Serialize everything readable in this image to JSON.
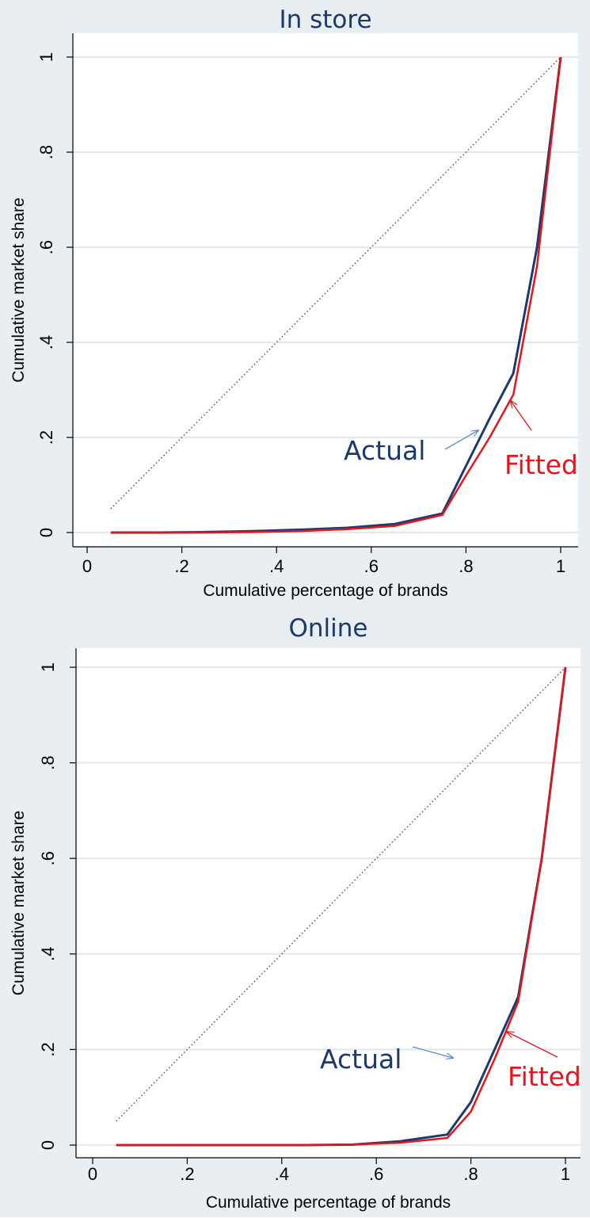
{
  "chart_data": [
    {
      "type": "line",
      "title": "In store",
      "xlabel": "Cumulative percentage of brands",
      "ylabel": "Cumulative market share",
      "xlim": [
        0,
        1
      ],
      "ylim": [
        0,
        1
      ],
      "x_ticks": [
        "0",
        ".2",
        ".4",
        ".6",
        ".8",
        "1"
      ],
      "y_ticks": [
        "0",
        ".2",
        ".4",
        ".6",
        ".8",
        "1"
      ],
      "grid": true,
      "colors": {
        "actual": "#1a3a6e",
        "fitted": "#e8141b",
        "diagonal": "#555555",
        "arrow": "#5b8fcf"
      },
      "series": [
        {
          "name": "Actual",
          "x": [
            0.05,
            0.15,
            0.25,
            0.35,
            0.45,
            0.55,
            0.65,
            0.75,
            0.8,
            0.85,
            0.9,
            0.95,
            1.0
          ],
          "y": [
            0.0,
            0.0,
            0.001,
            0.003,
            0.006,
            0.01,
            0.018,
            0.04,
            0.14,
            0.24,
            0.335,
            0.6,
            1.0
          ]
        },
        {
          "name": "Fitted",
          "x": [
            0.05,
            0.15,
            0.25,
            0.35,
            0.45,
            0.55,
            0.65,
            0.75,
            0.8,
            0.85,
            0.9,
            0.95,
            1.0
          ],
          "y": [
            0.0,
            0.0,
            0.0,
            0.001,
            0.003,
            0.007,
            0.014,
            0.037,
            0.12,
            0.2,
            0.29,
            0.56,
            1.0
          ]
        },
        {
          "x": [
            0.05,
            1.0
          ],
          "y": [
            0.05,
            1.0
          ]
        }
      ],
      "annotations": [
        {
          "text": "Actual",
          "target_series": "Actual"
        },
        {
          "text": "Fitted",
          "target_series": "Fitted"
        }
      ]
    },
    {
      "type": "line",
      "title": "Online",
      "xlabel": "Cumulative percentage of brands",
      "ylabel": "Cumulative market share",
      "xlim": [
        0,
        1
      ],
      "ylim": [
        0,
        1
      ],
      "x_ticks": [
        "0",
        ".2",
        ".4",
        ".6",
        ".8",
        "1"
      ],
      "y_ticks": [
        "0",
        ".2",
        ".4",
        ".6",
        ".8",
        "1"
      ],
      "grid": true,
      "colors": {
        "actual": "#1a3a6e",
        "fitted": "#e8141b",
        "diagonal": "#555555",
        "arrow": "#5b8fcf"
      },
      "series": [
        {
          "name": "Actual",
          "x": [
            0.05,
            0.15,
            0.25,
            0.35,
            0.45,
            0.55,
            0.65,
            0.75,
            0.8,
            0.85,
            0.9,
            0.95,
            1.0
          ],
          "y": [
            0.0,
            0.0,
            0.0,
            0.0,
            0.0,
            0.001,
            0.008,
            0.022,
            0.09,
            0.2,
            0.31,
            0.6,
            1.0
          ]
        },
        {
          "name": "Fitted",
          "x": [
            0.05,
            0.15,
            0.25,
            0.35,
            0.45,
            0.55,
            0.65,
            0.75,
            0.8,
            0.85,
            0.9,
            0.95,
            1.0
          ],
          "y": [
            0.0,
            0.0,
            0.0,
            0.0,
            0.0,
            0.001,
            0.005,
            0.015,
            0.07,
            0.18,
            0.3,
            0.6,
            1.0
          ]
        },
        {
          "x": [
            0.05,
            1.0
          ],
          "y": [
            0.05,
            1.0
          ]
        }
      ],
      "annotations": [
        {
          "text": "Actual",
          "target_series": "Actual"
        },
        {
          "text": "Fitted",
          "target_series": "Fitted"
        }
      ]
    }
  ]
}
